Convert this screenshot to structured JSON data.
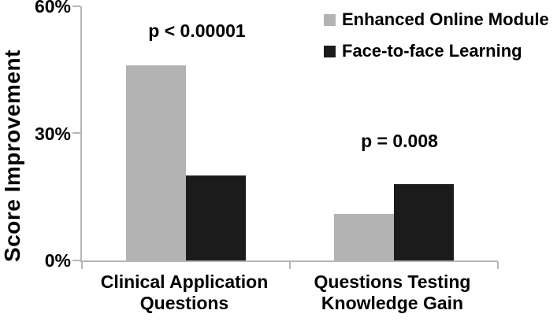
{
  "chart_data": {
    "type": "bar",
    "title": "",
    "xlabel": "",
    "ylabel": "Score Improvement",
    "ylim": [
      0,
      60
    ],
    "grid": false,
    "legend_position": "top-right",
    "axis_color": "#b6b6b6",
    "text_color": "#000000",
    "background_color": "#ffffff",
    "yticks": [
      {
        "value": 0,
        "label": "0%"
      },
      {
        "value": 30,
        "label": "30%"
      },
      {
        "value": 60,
        "label": "60%"
      }
    ],
    "categories": [
      "Clinical Application Questions",
      "Questions Testing Knowledge Gain"
    ],
    "category_label_lines": [
      [
        "Clinical Application",
        "Questions"
      ],
      [
        "Questions Testing",
        "Knowledge Gain"
      ]
    ],
    "series": [
      {
        "name": "Enhanced Online Module",
        "color": "#b3b3b3",
        "values": [
          46,
          11
        ]
      },
      {
        "name": "Face-to-face Learning",
        "color": "#1b1b1b",
        "values": [
          20,
          18
        ]
      }
    ],
    "annotations": [
      {
        "text": "p < 0.00001",
        "category": "Clinical Application Questions"
      },
      {
        "text": "p = 0.008",
        "category": "Questions Testing Knowledge Gain"
      }
    ]
  }
}
